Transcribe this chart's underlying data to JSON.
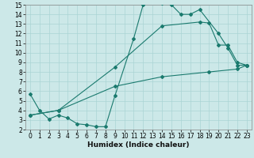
{
  "xlabel": "Humidex (Indice chaleur)",
  "background_color": "#cce8e8",
  "line_color": "#1a7a6e",
  "grid_color": "#aad4d4",
  "xlim": [
    -0.5,
    23.5
  ],
  "ylim": [
    2,
    15
  ],
  "xticks": [
    0,
    1,
    2,
    3,
    4,
    5,
    6,
    7,
    8,
    9,
    10,
    11,
    12,
    13,
    14,
    15,
    16,
    17,
    18,
    19,
    20,
    21,
    22,
    23
  ],
  "yticks": [
    2,
    3,
    4,
    5,
    6,
    7,
    8,
    9,
    10,
    11,
    12,
    13,
    14,
    15
  ],
  "line1_x": [
    0,
    1,
    2,
    3,
    4,
    5,
    6,
    7,
    8,
    9,
    11,
    12,
    13,
    14,
    15,
    16,
    17,
    18,
    20,
    21,
    22,
    23
  ],
  "line1_y": [
    5.7,
    4.0,
    3.1,
    3.5,
    3.2,
    2.6,
    2.5,
    2.3,
    2.3,
    5.5,
    11.5,
    15.0,
    15.5,
    15.2,
    15.0,
    14.0,
    14.0,
    14.5,
    12.0,
    10.5,
    8.7,
    8.7
  ],
  "line2_x": [
    0,
    3,
    9,
    14,
    18,
    19,
    20,
    21,
    22,
    23
  ],
  "line2_y": [
    3.5,
    4.0,
    8.5,
    12.8,
    13.2,
    13.1,
    10.8,
    10.8,
    9.0,
    8.7
  ],
  "line3_x": [
    0,
    3,
    9,
    14,
    19,
    22,
    23
  ],
  "line3_y": [
    3.5,
    4.0,
    6.5,
    7.5,
    8.0,
    8.3,
    8.7
  ],
  "marker": "D",
  "markersize": 2.0,
  "linewidth": 0.8,
  "tick_fontsize": 5.5,
  "xlabel_fontsize": 6.5
}
